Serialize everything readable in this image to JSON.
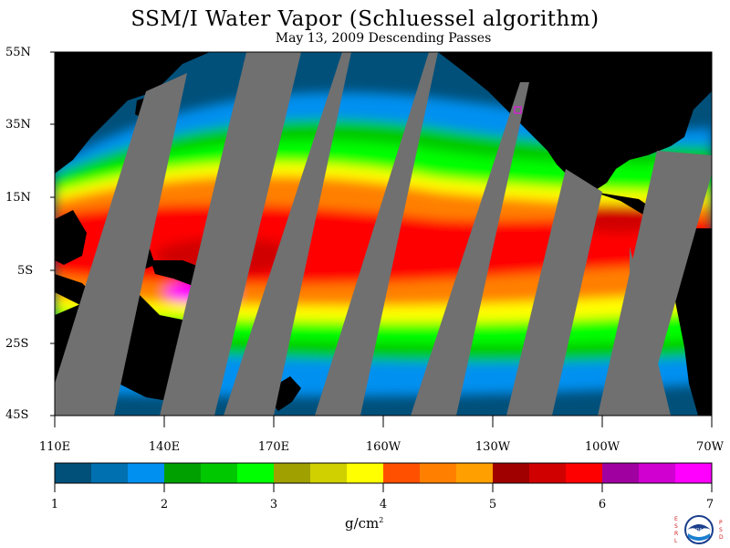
{
  "title": "SSM/I Water Vapor (Schluessel algorithm)",
  "subtitle": "May 13, 2009  Descending Passes",
  "lat_labels": [
    "55N",
    "35N",
    "15N",
    "5S",
    "25S",
    "45S"
  ],
  "lon_labels": [
    "110E",
    "140E",
    "170E",
    "160W",
    "130W",
    "100W",
    "70W"
  ],
  "colorbar": {
    "labels": [
      "1",
      "2",
      "3",
      "4",
      "5",
      "6",
      "7"
    ],
    "unit_base": "g/cm",
    "unit_sup": "2",
    "colors": [
      "#00507a",
      "#0070b0",
      "#0090f0",
      "#00a000",
      "#00c800",
      "#00ff00",
      "#a0a000",
      "#d0d000",
      "#ffff00",
      "#ff5000",
      "#ff8000",
      "#ffa000",
      "#a00000",
      "#d00000",
      "#ff0000",
      "#a000a0",
      "#d000d0",
      "#ff00ff"
    ]
  },
  "colors": {
    "land": "#000000",
    "no_data": "#707070",
    "ocean_dry": "#00507a"
  },
  "logo": {
    "left_letters": "ESRL",
    "right_letters": "PSD",
    "center_text": "NOAA"
  }
}
